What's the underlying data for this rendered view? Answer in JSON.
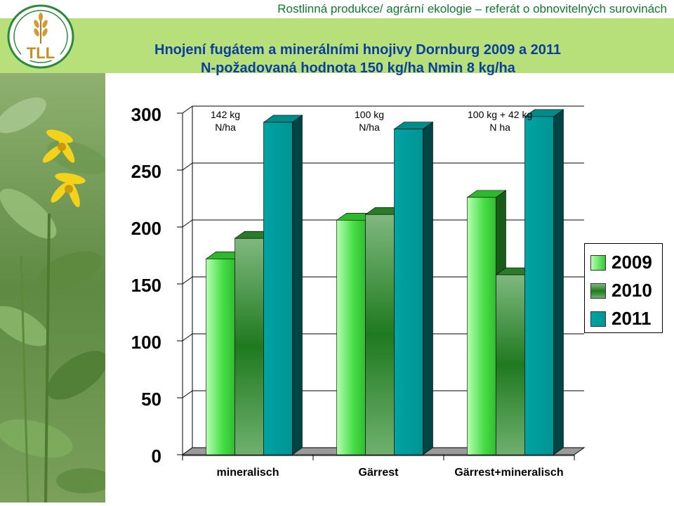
{
  "header": {
    "course": "Rostlinná produkce/ agrární ekologie – referát o obnovitelných  surovinách",
    "title_line1": "Hnojení fugátem a minerálními hnojivy Dornburg 2009 a 2011",
    "title_line2": "N-požadovaná hodnota 150 kg/ha    Nmin 8 kg/ha"
  },
  "logo": {
    "text": "TLL",
    "icon": "wheat-logo-icon"
  },
  "annotations": [
    {
      "line1": "142 kg",
      "line2": "N/ha"
    },
    {
      "line1": "100 kg",
      "line2": "N/ha"
    },
    {
      "line1": "100 kg  + 42 kg",
      "line2": "N ha"
    }
  ],
  "chart_data": {
    "type": "bar",
    "title": "",
    "xlabel": "",
    "ylabel": "",
    "categories": [
      "mineralisch",
      "Gärrest",
      "Gärrest+mineralisch"
    ],
    "series": [
      {
        "name": "2009",
        "values": [
          172,
          206,
          226
        ],
        "color": "#33cc33"
      },
      {
        "name": "2010",
        "values": [
          190,
          211,
          158
        ],
        "color": "#2e8b2e"
      },
      {
        "name": "2011",
        "values": [
          292,
          286,
          297
        ],
        "color": "#009999"
      }
    ],
    "yticks": [
      "0",
      "50",
      "100",
      "150",
      "200",
      "250",
      "300"
    ],
    "ylim": [
      0,
      300
    ],
    "legend_position": "right",
    "style": "3d"
  }
}
